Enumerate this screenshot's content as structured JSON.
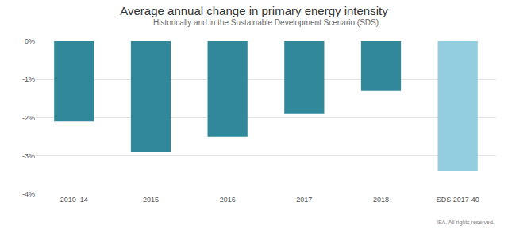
{
  "chart_data": {
    "type": "bar",
    "title": "Average annual change in primary energy intensity",
    "subtitle": "Historically and in the Sustainable Development Scenario (SDS)",
    "source": "IEA. All rights reserved.",
    "categories": [
      "2010–14",
      "2015",
      "2016",
      "2017",
      "2018",
      "SDS 2017-40"
    ],
    "values": [
      -2.1,
      -2.9,
      -2.5,
      -1.9,
      -1.3,
      -3.4
    ],
    "colors": [
      "#31889b",
      "#31889b",
      "#31889b",
      "#31889b",
      "#31889b",
      "#93cde0"
    ],
    "ylim": [
      -4,
      0
    ],
    "yticks": [
      {
        "value": 0,
        "label": "0%"
      },
      {
        "value": -1,
        "label": "-1%"
      },
      {
        "value": -2,
        "label": "-2%"
      },
      {
        "value": -3,
        "label": "-3%"
      },
      {
        "value": -4,
        "label": "-4%"
      }
    ],
    "grid": true
  }
}
